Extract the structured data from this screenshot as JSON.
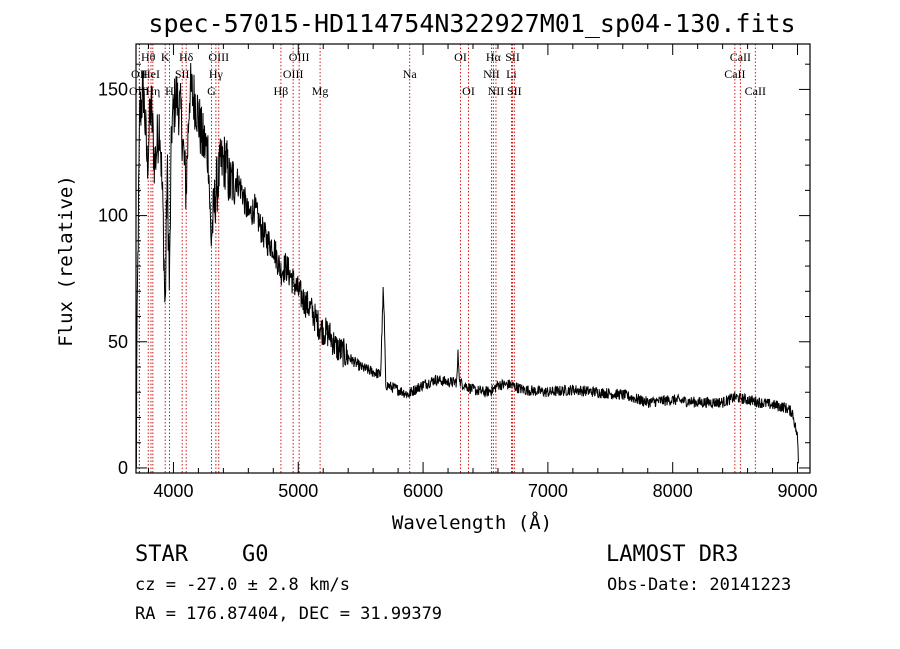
{
  "chart_data": {
    "type": "line",
    "title": "spec-57015-HD114754N322927M01_sp04-130.fits",
    "xlabel": "Wavelength (Å)",
    "ylabel": "Flux (relative)",
    "xlim": [
      3700,
      9100
    ],
    "ylim": [
      -2,
      168
    ],
    "xticks": [
      4000,
      5000,
      6000,
      7000,
      8000,
      9000
    ],
    "yticks": [
      0,
      50,
      100,
      150
    ],
    "xtick_labels": [
      "4000",
      "5000",
      "6000",
      "7000",
      "8000",
      "9000"
    ],
    "ytick_labels": [
      "0",
      "50",
      "100",
      "150"
    ],
    "series": [
      {
        "name": "flux",
        "anchors": [
          [
            3700,
            0
          ],
          [
            3712,
            70
          ],
          [
            3730,
            140
          ],
          [
            3760,
            150
          ],
          [
            3790,
            120
          ],
          [
            3820,
            145
          ],
          [
            3850,
            120
          ],
          [
            3890,
            138
          ],
          [
            3920,
            95
          ],
          [
            3933,
            60
          ],
          [
            3950,
            120
          ],
          [
            3968,
            70
          ],
          [
            3985,
            135
          ],
          [
            4020,
            148
          ],
          [
            4060,
            140
          ],
          [
            4101,
            110
          ],
          [
            4130,
            150
          ],
          [
            4180,
            145
          ],
          [
            4230,
            130
          ],
          [
            4280,
            125
          ],
          [
            4300,
            90
          ],
          [
            4340,
            110
          ],
          [
            4380,
            120
          ],
          [
            4420,
            122
          ],
          [
            4450,
            112
          ],
          [
            4500,
            115
          ],
          [
            4550,
            110
          ],
          [
            4600,
            100
          ],
          [
            4650,
            103
          ],
          [
            4700,
            95
          ],
          [
            4750,
            90
          ],
          [
            4800,
            88
          ],
          [
            4861,
            78
          ],
          [
            4900,
            80
          ],
          [
            4950,
            75
          ],
          [
            5000,
            70
          ],
          [
            5050,
            66
          ],
          [
            5100,
            63
          ],
          [
            5150,
            58
          ],
          [
            5183,
            55
          ],
          [
            5250,
            53
          ],
          [
            5300,
            48
          ],
          [
            5400,
            44
          ],
          [
            5500,
            40
          ],
          [
            5600,
            38
          ],
          [
            5660,
            37
          ],
          [
            5680,
            70
          ],
          [
            5690,
            58
          ],
          [
            5700,
            33
          ],
          [
            5800,
            31
          ],
          [
            5890,
            29
          ],
          [
            5900,
            30
          ],
          [
            6000,
            33
          ],
          [
            6100,
            35
          ],
          [
            6200,
            34
          ],
          [
            6270,
            34
          ],
          [
            6280,
            45
          ],
          [
            6295,
            34
          ],
          [
            6400,
            31
          ],
          [
            6500,
            30
          ],
          [
            6563,
            31
          ],
          [
            6600,
            33
          ],
          [
            6700,
            33
          ],
          [
            6800,
            31
          ],
          [
            7000,
            30
          ],
          [
            7200,
            31
          ],
          [
            7400,
            30
          ],
          [
            7600,
            29
          ],
          [
            7800,
            26
          ],
          [
            8000,
            27
          ],
          [
            8200,
            26
          ],
          [
            8400,
            26
          ],
          [
            8500,
            28
          ],
          [
            8600,
            27
          ],
          [
            8700,
            26
          ],
          [
            8800,
            25
          ],
          [
            8900,
            24
          ],
          [
            8960,
            22
          ],
          [
            9000,
            12
          ],
          [
            9010,
            2
          ]
        ]
      }
    ],
    "spectral_lines": [
      {
        "label": "Hθ",
        "wave": 3798,
        "row": 1
      },
      {
        "label": "OII",
        "wave": 3727,
        "row": 2
      },
      {
        "label": "HeI",
        "wave": 3820,
        "row": 2
      },
      {
        "label": "OIII",
        "wave": 3727,
        "row": 3
      },
      {
        "label": "Hη",
        "wave": 3835,
        "row": 3
      },
      {
        "label": "K",
        "wave": 3934,
        "row": 1
      },
      {
        "label": "H",
        "wave": 3968,
        "row": 3
      },
      {
        "label": "Hδ",
        "wave": 4102,
        "row": 1
      },
      {
        "label": "SII",
        "wave": 4070,
        "row": 2
      },
      {
        "label": "OIII",
        "wave": 4363,
        "row": 1
      },
      {
        "label": "Hγ",
        "wave": 4340,
        "row": 2
      },
      {
        "label": "G",
        "wave": 4305,
        "row": 3
      },
      {
        "label": "Hβ",
        "wave": 4861,
        "row": 3
      },
      {
        "label": "OIII",
        "wave": 5007,
        "row": 1
      },
      {
        "label": "OIII",
        "wave": 4959,
        "row": 2
      },
      {
        "label": "Mg",
        "wave": 5175,
        "row": 3
      },
      {
        "label": "Na",
        "wave": 5893,
        "row": 2
      },
      {
        "label": "OI",
        "wave": 6300,
        "row": 1
      },
      {
        "label": "OI",
        "wave": 6364,
        "row": 3
      },
      {
        "label": "Hα",
        "wave": 6563,
        "row": 1
      },
      {
        "label": "NII",
        "wave": 6548,
        "row": 2
      },
      {
        "label": "NII",
        "wave": 6584,
        "row": 3
      },
      {
        "label": "SII",
        "wave": 6717,
        "row": 1
      },
      {
        "label": "Li",
        "wave": 6708,
        "row": 2
      },
      {
        "label": "SII",
        "wave": 6731,
        "row": 3
      },
      {
        "label": "CaII",
        "wave": 8542,
        "row": 1
      },
      {
        "label": "CaII",
        "wave": 8498,
        "row": 2
      },
      {
        "label": "CaII",
        "wave": 8662,
        "row": 3
      }
    ]
  },
  "info": {
    "object_type": "STAR",
    "subclass": "G0",
    "survey": "LAMOST DR3",
    "cz": "cz = -27.0 ± 2.8 km/s",
    "obs_date": "Obs-Date: 20141223",
    "coords": "RA = 176.87404, DEC =  31.99379"
  },
  "colors": {
    "line_markers": "#cc0000",
    "spectrum": "#000000",
    "axes": "#000000"
  }
}
